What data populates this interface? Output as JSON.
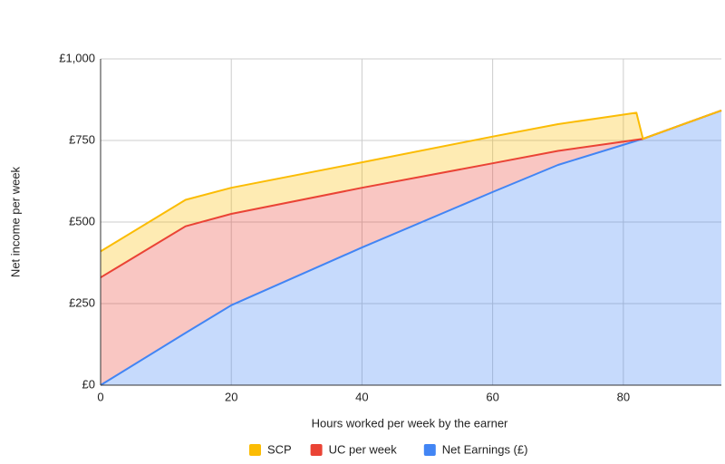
{
  "chart_data": {
    "type": "stacked_area",
    "x_label": "Hours worked per week by the earner",
    "y_label": "Net income per week",
    "x": [
      0,
      13,
      20,
      40,
      60,
      70,
      82,
      83,
      95
    ],
    "series": [
      {
        "name": "SCP",
        "color": "#fbbc04",
        "values": [
          80,
          81,
          80,
          78,
          82,
          82,
          83,
          0,
          0
        ]
      },
      {
        "name": "UC per week",
        "color": "#ea4335",
        "values": [
          330,
          327,
          280,
          183,
          88,
          43,
          3,
          0,
          0
        ]
      },
      {
        "name": "Net Earnings (£)",
        "color": "#4285f4",
        "values": [
          0,
          160,
          245,
          422,
          592,
          675,
          749,
          755,
          842
        ]
      }
    ],
    "xlim": [
      0,
      95
    ],
    "xticks": [
      0,
      20,
      40,
      60,
      80
    ],
    "ylim": [
      0,
      1000
    ],
    "yticks": [
      {
        "value": 0,
        "label": "£0"
      },
      {
        "value": 250,
        "label": "£250"
      },
      {
        "value": 500,
        "label": "£500"
      },
      {
        "value": 750,
        "label": "£750"
      },
      {
        "value": 1000,
        "label": "£1,000"
      }
    ],
    "grid": true,
    "legend": "bottom"
  }
}
